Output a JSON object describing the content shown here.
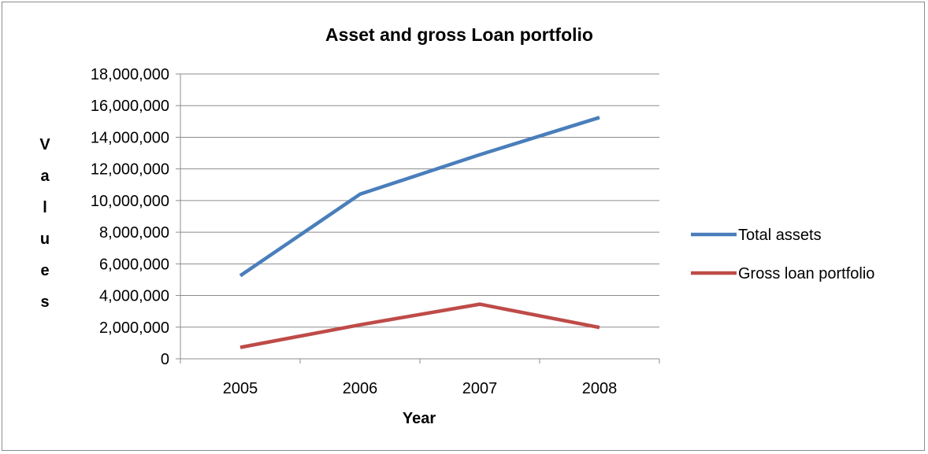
{
  "chart_data": {
    "type": "line",
    "title": "Asset and gross Loan portfolio",
    "xlabel": "Year",
    "ylabel": "Values",
    "categories": [
      "2005",
      "2006",
      "2007",
      "2008"
    ],
    "ylim": [
      0,
      18000000
    ],
    "y_ticks": [
      0,
      2000000,
      4000000,
      6000000,
      8000000,
      10000000,
      12000000,
      14000000,
      16000000,
      18000000
    ],
    "y_tick_labels": [
      "0",
      "2,000,000",
      "4,000,000",
      "6,000,000",
      "8,000,000",
      "10,000,000",
      "12,000,000",
      "14,000,000",
      "16,000,000",
      "18,000,000"
    ],
    "grid": true,
    "legend_position": "right",
    "series": [
      {
        "name": "Total assets",
        "color": "#4a7ebb",
        "values": [
          5250000,
          10400000,
          12900000,
          15250000
        ]
      },
      {
        "name": "Gross loan portfolio",
        "color": "#be4b48",
        "values": [
          720000,
          2150000,
          3450000,
          1980000
        ]
      }
    ]
  }
}
